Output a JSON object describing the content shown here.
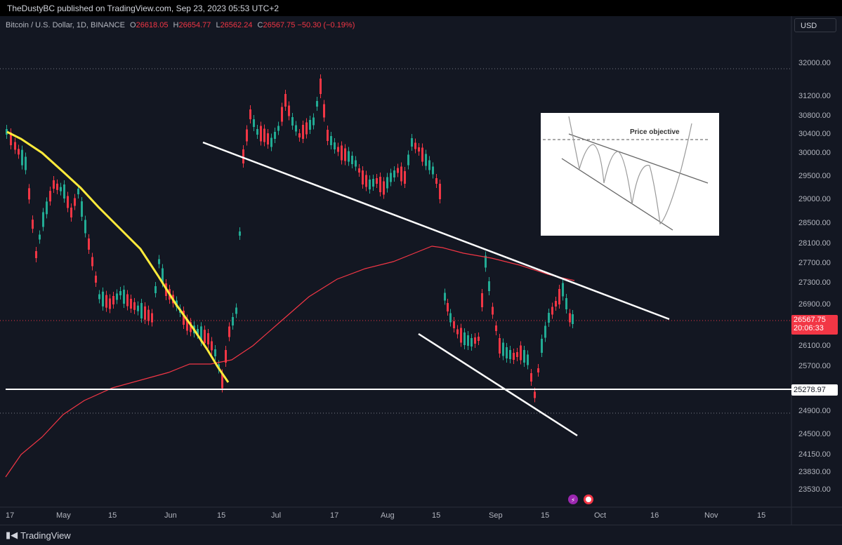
{
  "header": {
    "published_text": "TheDustyBC published on TradingView.com, Sep 23, 2023 05:53 UTC+2"
  },
  "symbol": {
    "name": "Bitcoin / U.S. Dollar, 1D, BINANCE",
    "o_label": "O",
    "open": "26618.05",
    "h_label": "H",
    "high": "26654.77",
    "l_label": "L",
    "low": "26562.24",
    "c_label": "C",
    "close": "26567.75",
    "change": "−50.30 (−0.19%)"
  },
  "currency_button": "USD",
  "price_axis": {
    "labels": [
      "32000.00",
      "31200.00",
      "30800.00",
      "30400.00",
      "30000.00",
      "29500.00",
      "29000.00",
      "28500.00",
      "28100.00",
      "27700.00",
      "27300.00",
      "26900.00",
      "26100.00",
      "25700.00",
      "24900.00",
      "24500.00",
      "24150.00",
      "23830.00",
      "23530.00"
    ],
    "current_price": "26567.75",
    "countdown": "20:06:33",
    "support_price": "25278.97"
  },
  "time_axis": {
    "labels": [
      "17",
      "May",
      "15",
      "Jun",
      "15",
      "Jul",
      "17",
      "Aug",
      "15",
      "Sep",
      "15",
      "Oct",
      "16",
      "Nov",
      "15"
    ]
  },
  "inset": {
    "label": "Price objective"
  },
  "footer": {
    "brand": "TradingView"
  },
  "colors": {
    "up": "#22ab94",
    "down": "#f23645",
    "ma_yellow": "#ffeb3b",
    "ma_red": "#f23645",
    "background": "#131722"
  }
}
